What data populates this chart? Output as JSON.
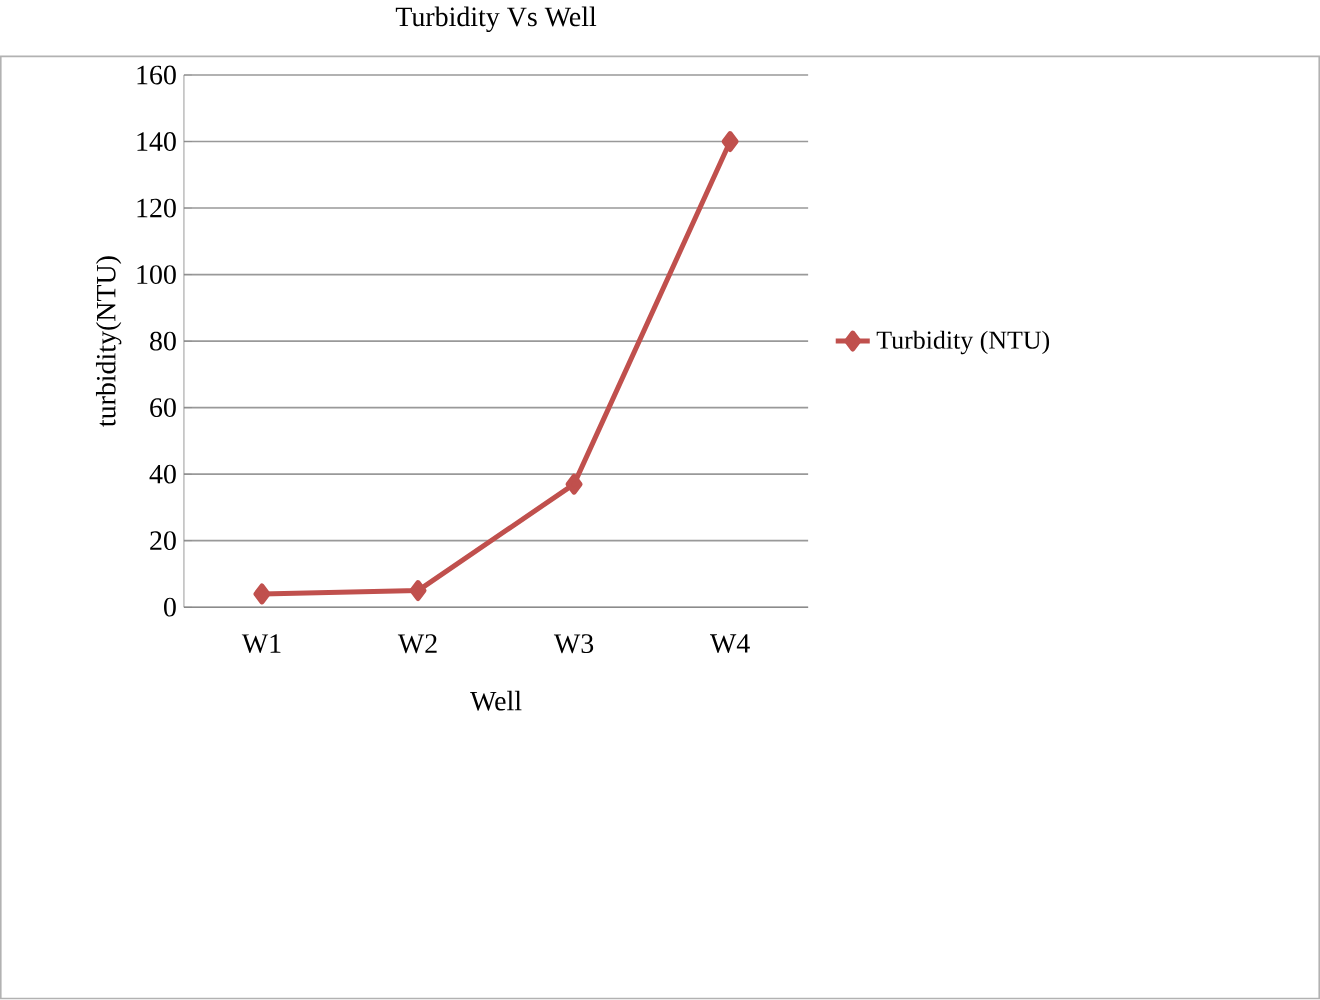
{
  "chart_data": {
    "type": "line",
    "title": "Turbidity Vs Well",
    "xlabel": "Well",
    "ylabel": "turbidity(NTU)",
    "categories": [
      "W1",
      "W2",
      "W3",
      "W4"
    ],
    "series": [
      {
        "name": "Turbidity (NTU)",
        "color": "#c0504d",
        "values": [
          4,
          5,
          37,
          140
        ]
      }
    ],
    "ylim": [
      0,
      160
    ],
    "yticks": [
      0,
      20,
      40,
      60,
      80,
      100,
      120,
      140,
      160
    ],
    "grid": "y",
    "legend": "right",
    "marker": "diamond",
    "line_style": "solid"
  }
}
